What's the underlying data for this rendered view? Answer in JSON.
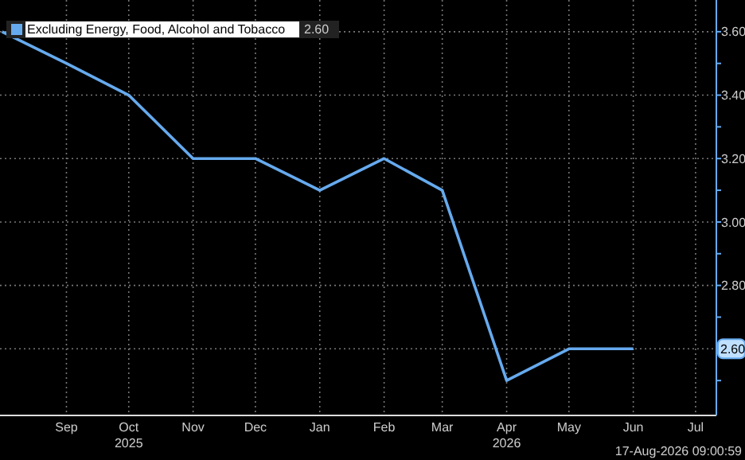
{
  "chart_data": {
    "type": "line",
    "x": [
      "2025-08-01",
      "2025-09-01",
      "2025-10-01",
      "2025-11-01",
      "2025-12-01",
      "2026-01-01",
      "2026-02-01",
      "2026-03-01",
      "2026-04-01",
      "2026-05-01",
      "2026-06-01"
    ],
    "series": [
      {
        "name": "Excluding Energy, Food, Alcohol and Tobacco",
        "color": "#66aaee",
        "values": [
          3.6,
          3.5,
          3.4,
          3.2,
          3.2,
          3.1,
          3.2,
          3.1,
          2.5,
          2.6,
          2.6
        ]
      }
    ],
    "xlim": [
      "2025-07-31",
      "2026-07-11"
    ],
    "xticks": [
      {
        "value": "2025-09-01",
        "label": "Sep"
      },
      {
        "value": "2025-10-01",
        "label": "Oct\n2025"
      },
      {
        "value": "2025-11-01",
        "label": "Nov"
      },
      {
        "value": "2025-12-01",
        "label": "Dec"
      },
      {
        "value": "2026-01-01",
        "label": "Jan"
      },
      {
        "value": "2026-02-01",
        "label": "Feb"
      },
      {
        "value": "2026-03-01",
        "label": "Mar"
      },
      {
        "value": "2026-04-01",
        "label": "Apr\n2026"
      },
      {
        "value": "2026-05-01",
        "label": "May"
      },
      {
        "value": "2026-06-01",
        "label": "Jun"
      },
      {
        "value": "2026-07-01",
        "label": "Jul"
      }
    ],
    "ylim": [
      2.39,
      3.7
    ],
    "yticks": [
      {
        "value": 2.5,
        "label": null
      },
      {
        "value": 2.6,
        "label": "2.60"
      },
      {
        "value": 2.7,
        "label": null
      },
      {
        "value": 2.8,
        "label": "2.80"
      },
      {
        "value": 2.9,
        "label": null
      },
      {
        "value": 3.0,
        "label": "3.00"
      },
      {
        "value": 3.1,
        "label": null
      },
      {
        "value": 3.2,
        "label": "3.20"
      },
      {
        "value": 3.3,
        "label": null
      },
      {
        "value": 3.4,
        "label": "3.40"
      },
      {
        "value": 3.5,
        "label": null
      },
      {
        "value": 3.6,
        "label": "3.60"
      }
    ],
    "grid": true,
    "legend": "top left",
    "annotations": [
      "2.60",
      "17-Aug-2026 09:00:59"
    ]
  }
}
